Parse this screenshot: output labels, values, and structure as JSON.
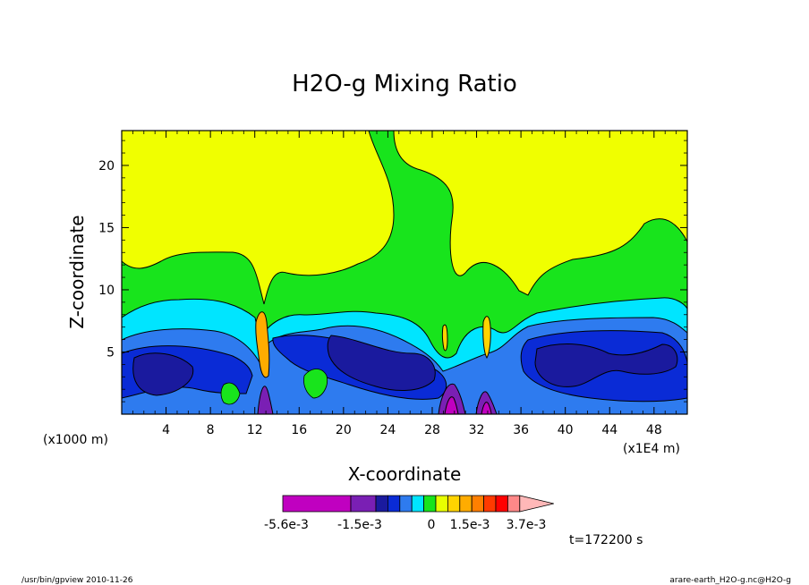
{
  "chart_data": {
    "type": "heatmap",
    "title": "H2O-g Mixing Ratio",
    "xlabel": "X-coordinate",
    "ylabel": "Z-coordinate",
    "x_unit_left": "(x1000 m)",
    "x_unit_right": "(x1E4 m)",
    "xlim": [
      0,
      51
    ],
    "ylim": [
      0,
      22.8
    ],
    "x_ticks": [
      4,
      8,
      12,
      16,
      20,
      24,
      28,
      32,
      36,
      40,
      44,
      48
    ],
    "y_ticks": [
      5,
      10,
      15,
      20
    ],
    "colorbar": {
      "labels": [
        "-5.6e-3",
        "-1.5e-3",
        "0",
        "1.5e-3",
        "3.7e-3"
      ],
      "colors": [
        "#c000c0",
        "#7a1fb4",
        "#1a1a9e",
        "#0a2bd6",
        "#2e7bef",
        "#00e5ff",
        "#18e41c",
        "#e8ff00",
        "#ffd400",
        "#ffac00",
        "#ff7f00",
        "#ff3a00",
        "#ff0000",
        "#ff8888",
        "#ffb8b8"
      ]
    },
    "time_label": "t=172200 s"
  },
  "footer": {
    "left": "/usr/bin/gpview  2010-11-26",
    "right": "arare-earth_H2O-g.nc@H2O-g"
  }
}
